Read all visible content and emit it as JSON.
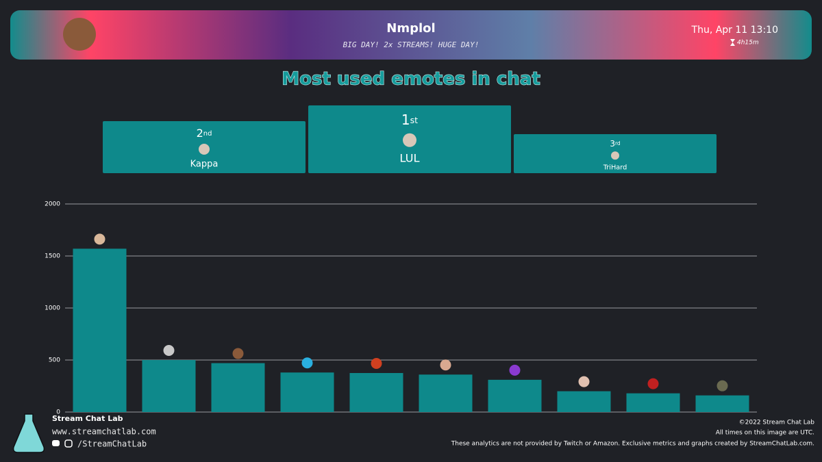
{
  "header": {
    "streamer": "Nmplol",
    "stream_title": "BIG DAY! 2x STREAMS! HUGE DAY!",
    "datetime": "Thu, Apr 11 13:10",
    "duration": "4h15m"
  },
  "podium": [
    {
      "rank": "2",
      "suffix": "nd",
      "emote": "Kappa"
    },
    {
      "rank": "1",
      "suffix": "st",
      "emote": "LUL"
    },
    {
      "rank": "3",
      "suffix": "rd",
      "emote": "TriHard"
    }
  ],
  "chart_data": {
    "type": "bar",
    "title": "Most used emotes in chat",
    "categories": [
      null,
      null,
      null,
      null,
      null,
      null,
      null,
      null,
      null,
      null
    ],
    "values": [
      1570,
      500,
      470,
      380,
      375,
      360,
      310,
      200,
      180,
      160
    ],
    "color": "#0e898b",
    "ylim": [
      0,
      2000
    ],
    "yticks": [
      0,
      500,
      1000,
      1500,
      2000
    ],
    "grid": true
  },
  "footer": {
    "brand": "Stream Chat Lab",
    "url": "www.streamchatlab.com",
    "handle": "/StreamChatLab",
    "copyright": "©2022 Stream Chat Lab",
    "timezone_note": "All times on this image are UTC.",
    "disclaimer": "These analytics are not provided by Twitch or Amazon. Exclusive metrics and graphs created by StreamChatLab.com."
  }
}
